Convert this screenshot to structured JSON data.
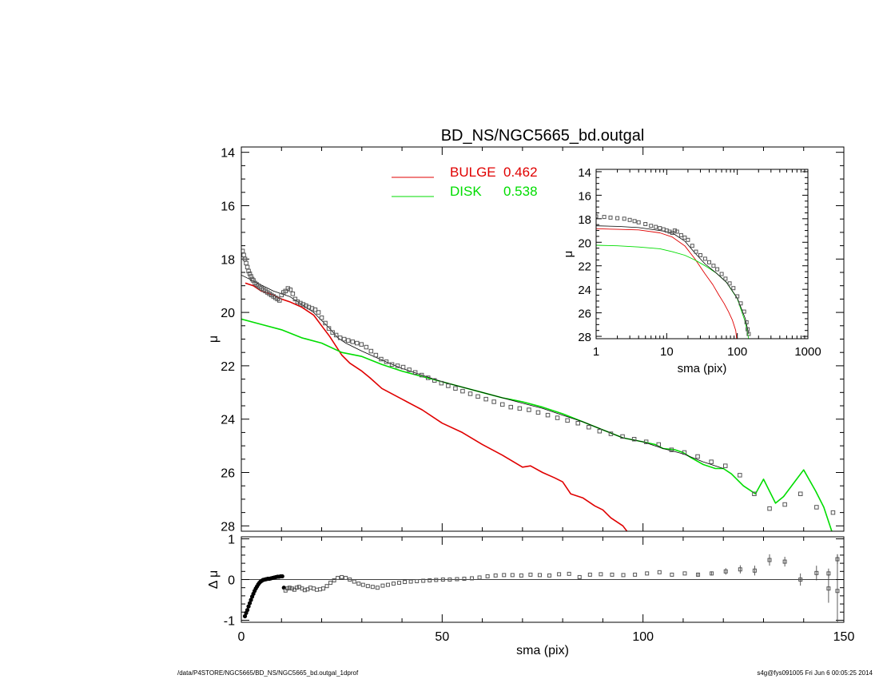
{
  "chart_data": [
    {
      "id": "main",
      "type": "line",
      "title": "BD_NS/NGC5665_bd.outgal",
      "xlabel": "",
      "ylabel": "μ",
      "xlim": [
        0,
        150
      ],
      "ylim": [
        28.2,
        13.8
      ],
      "y_inverted": true,
      "yticks": [
        14,
        16,
        18,
        20,
        22,
        24,
        26,
        28
      ],
      "legend": [
        {
          "label": "BULGE",
          "value": "0.462",
          "color": "#e00000"
        },
        {
          "label": "DISK",
          "value": "0.538",
          "color": "#00dd00"
        }
      ],
      "legend_placement": "top-center",
      "series": [
        {
          "name": "BULGE",
          "color": "#e00000",
          "x": [
            1,
            3,
            5,
            8,
            10,
            12,
            15,
            18,
            20,
            22,
            25,
            27,
            30,
            32,
            35,
            40,
            45,
            50,
            55,
            60,
            65,
            70,
            72,
            75,
            78,
            80,
            82,
            85,
            88,
            90,
            92,
            95,
            96
          ],
          "y": [
            18.9,
            19.0,
            19.2,
            19.35,
            19.5,
            19.6,
            19.8,
            20.1,
            20.5,
            20.9,
            21.6,
            21.9,
            22.2,
            22.45,
            22.85,
            23.25,
            23.65,
            24.15,
            24.5,
            24.95,
            25.35,
            25.8,
            25.75,
            26.0,
            26.2,
            26.35,
            26.8,
            26.95,
            27.25,
            27.4,
            27.7,
            28.0,
            28.2
          ]
        },
        {
          "name": "DISK",
          "color": "#00dd00",
          "x": [
            0,
            5,
            10,
            15,
            20,
            25,
            30,
            35,
            40,
            45,
            50,
            55,
            60,
            65,
            70,
            75,
            80,
            85,
            90,
            95,
            100,
            103,
            105,
            108,
            110,
            112,
            115,
            118,
            120,
            122,
            125,
            128,
            130,
            133,
            135,
            138,
            140,
            143,
            145,
            147
          ],
          "y": [
            20.25,
            20.45,
            20.65,
            20.95,
            21.15,
            21.5,
            21.65,
            21.95,
            22.2,
            22.4,
            22.6,
            22.8,
            23.0,
            23.2,
            23.35,
            23.55,
            23.8,
            24.1,
            24.4,
            24.7,
            24.85,
            24.95,
            25.1,
            25.15,
            25.25,
            25.45,
            25.7,
            25.85,
            25.85,
            26.05,
            26.5,
            26.8,
            26.25,
            27.15,
            26.9,
            26.3,
            25.9,
            26.7,
            27.3,
            28.2
          ]
        },
        {
          "name": "",
          "color": "#000000",
          "kind": "thin-model",
          "x": [
            0,
            2,
            4,
            6,
            8,
            10,
            12,
            14,
            16,
            18,
            20,
            22,
            24,
            26,
            28,
            30,
            33,
            36,
            40,
            45,
            50,
            55,
            60,
            65,
            70,
            75,
            80,
            85,
            90,
            95,
            100,
            105,
            110,
            115,
            120
          ],
          "y": [
            18.6,
            18.75,
            18.9,
            19.05,
            19.2,
            19.3,
            19.4,
            19.6,
            19.8,
            20.0,
            20.3,
            20.6,
            20.95,
            21.15,
            21.3,
            21.45,
            21.65,
            21.85,
            22.1,
            22.35,
            22.6,
            22.8,
            23.0,
            23.2,
            23.4,
            23.6,
            23.85,
            24.1,
            24.4,
            24.7,
            24.85,
            25.1,
            25.3,
            25.6,
            25.85
          ]
        },
        {
          "name": "",
          "color": "#000000",
          "kind": "data-points",
          "x": [
            0.3,
            0.6,
            0.9,
            1.2,
            1.5,
            1.8,
            2.1,
            2.4,
            2.7,
            3.0,
            3.4,
            3.8,
            4.2,
            4.6,
            5.0,
            5.5,
            6.0,
            6.5,
            7.0,
            7.5,
            8.0,
            8.5,
            9.0,
            9.5,
            10.0,
            10.5,
            11.0,
            11.6,
            12.2,
            12.8,
            13.4,
            14.0,
            14.7,
            15.4,
            16.1,
            16.8,
            17.6,
            18.4,
            19.2,
            20.0,
            20.9,
            21.8,
            22.7,
            23.6,
            24.6,
            25.6,
            26.6,
            27.7,
            28.8,
            29.9,
            31.1,
            32.3,
            33.5,
            34.8,
            36.1,
            37.5,
            38.9,
            40.3,
            41.8,
            43.3,
            44.9,
            46.5,
            48.1,
            49.8,
            51.5,
            53.3,
            55.1,
            57.0,
            58.9,
            60.9,
            62.9,
            65.0,
            67.1,
            69.3,
            71.6,
            73.9,
            76.3,
            78.7,
            81.2,
            83.8,
            86.5,
            89.2,
            92.0,
            94.9,
            97.8,
            100.8,
            103.9,
            107.1,
            110.3,
            113.6,
            117.0,
            120.5,
            124.1,
            127.7,
            131.5,
            135.3,
            139.2,
            143.2,
            147.3
          ],
          "y": [
            17.7,
            17.85,
            18.0,
            18.15,
            18.3,
            18.45,
            18.55,
            18.65,
            18.75,
            18.8,
            18.9,
            18.95,
            19.0,
            19.05,
            19.1,
            19.15,
            19.2,
            19.25,
            19.3,
            19.35,
            19.4,
            19.45,
            19.5,
            19.55,
            19.35,
            19.25,
            19.2,
            19.1,
            19.15,
            19.3,
            19.5,
            19.6,
            19.65,
            19.7,
            19.75,
            19.8,
            19.85,
            19.9,
            20.0,
            20.2,
            20.4,
            20.6,
            20.75,
            20.85,
            20.95,
            21.0,
            21.05,
            21.1,
            21.15,
            21.2,
            21.3,
            21.45,
            21.6,
            21.75,
            21.85,
            21.95,
            22.0,
            22.05,
            22.15,
            22.25,
            22.35,
            22.45,
            22.55,
            22.65,
            22.75,
            22.85,
            22.95,
            23.05,
            23.15,
            23.25,
            23.35,
            23.45,
            23.55,
            23.6,
            23.65,
            23.75,
            23.85,
            23.95,
            24.05,
            24.15,
            24.3,
            24.45,
            24.55,
            24.65,
            24.75,
            24.85,
            24.95,
            25.15,
            25.25,
            25.4,
            25.6,
            25.75,
            26.1,
            26.8,
            27.35,
            27.2,
            26.8,
            27.3,
            27.5
          ]
        }
      ]
    },
    {
      "id": "inset",
      "type": "line",
      "title": "",
      "xlabel": "sma (pix)",
      "ylabel": "μ",
      "xscale": "log",
      "xlim": [
        1,
        1000
      ],
      "ylim": [
        28.2,
        13.8
      ],
      "y_inverted": true,
      "xticks": [
        1,
        10,
        100,
        1000
      ],
      "xtick_labels": [
        "1",
        "10",
        "100",
        "1000"
      ],
      "yticks": [
        14,
        16,
        18,
        20,
        22,
        24,
        26,
        28
      ],
      "series": [
        {
          "name": "BULGE",
          "color": "#e00000",
          "x": [
            1,
            2,
            4,
            8,
            12,
            18,
            25,
            35,
            45,
            55,
            65,
            75,
            85,
            95,
            98
          ],
          "y": [
            18.85,
            18.9,
            18.95,
            19.2,
            19.55,
            20.3,
            21.4,
            22.7,
            23.6,
            24.5,
            25.2,
            25.9,
            26.6,
            27.5,
            28.2
          ]
        },
        {
          "name": "DISK",
          "color": "#00dd00",
          "x": [
            1,
            2,
            4,
            8,
            12,
            18,
            25,
            35,
            50,
            70,
            100,
            130,
            145
          ],
          "y": [
            20.25,
            20.3,
            20.4,
            20.55,
            20.8,
            21.1,
            21.5,
            22.0,
            22.6,
            23.4,
            24.8,
            26.8,
            28.2
          ]
        },
        {
          "name": "",
          "color": "#000000",
          "kind": "thin-model",
          "x": [
            1,
            2,
            4,
            8,
            12,
            18,
            25,
            35,
            50,
            70,
            100,
            130,
            145
          ],
          "y": [
            18.6,
            18.65,
            18.75,
            19.0,
            19.2,
            19.9,
            20.9,
            21.85,
            22.6,
            23.4,
            24.75,
            26.5,
            27.8
          ]
        },
        {
          "name": "",
          "color": "#000000",
          "kind": "data-points",
          "x": [
            1,
            1.3,
            1.6,
            2,
            2.5,
            3,
            3.5,
            4,
            5,
            6,
            7,
            8,
            9,
            10,
            11,
            12,
            13,
            14,
            16,
            18,
            20,
            23,
            26,
            30,
            35,
            40,
            46,
            52,
            60,
            68,
            78,
            88,
            100,
            112,
            125,
            135,
            140,
            145
          ],
          "y": [
            17.8,
            17.85,
            17.9,
            17.95,
            18.0,
            18.1,
            18.2,
            18.3,
            18.45,
            18.6,
            18.7,
            18.8,
            18.9,
            19.0,
            19.1,
            19.2,
            19.0,
            19.1,
            19.4,
            19.6,
            19.8,
            20.3,
            20.8,
            21.1,
            21.4,
            21.7,
            22.0,
            22.3,
            22.7,
            23.1,
            23.5,
            23.9,
            24.6,
            25.2,
            25.9,
            26.8,
            27.4,
            27.8
          ]
        }
      ]
    },
    {
      "id": "residual",
      "type": "scatter",
      "title": "",
      "xlabel": "sma (pix)",
      "ylabel": "Δ μ",
      "xlim": [
        0,
        150
      ],
      "ylim": [
        -1.05,
        1.05
      ],
      "xticks": [
        0,
        50,
        100,
        150
      ],
      "yticks": [
        -1,
        0,
        1
      ],
      "series": [
        {
          "name": "",
          "kind": "residual-points",
          "x": [
            0.9,
            1.2,
            1.5,
            1.8,
            2.1,
            2.4,
            2.7,
            3.0,
            3.3,
            3.6,
            3.9,
            4.2,
            4.5,
            4.8,
            5.1,
            5.4,
            5.8,
            6.2,
            6.6,
            7.0,
            7.4,
            7.8,
            8.2,
            8.6,
            9.0,
            9.4,
            9.8,
            10.2,
            10.6,
            11.0,
            11.5,
            12.0,
            12.6,
            13.2,
            13.8,
            14.4,
            15.1,
            15.8,
            16.5,
            17.2,
            18.0,
            18.8,
            19.6,
            20.4,
            21.3,
            22.2,
            23.1,
            24.0,
            25.0,
            26.0,
            27.0,
            28.1,
            29.2,
            30.3,
            31.5,
            32.7,
            33.9,
            35.2,
            36.5,
            37.9,
            39.3,
            40.7,
            42.2,
            43.7,
            45.3,
            46.9,
            48.5,
            50.2,
            51.9,
            53.7,
            55.5,
            57.4,
            59.3,
            61.3,
            63.3,
            65.4,
            67.5,
            69.7,
            72.0,
            74.3,
            76.7,
            79.1,
            81.6,
            84.2,
            86.8,
            89.5,
            92.3,
            95.1,
            98.0,
            101.0,
            104.1,
            107.2,
            110.4,
            113.7,
            117.1,
            120.6,
            124.2,
            127.8,
            131.5,
            135.3,
            139.2,
            143.2,
            146.2,
            148.4
          ],
          "y": [
            -0.9,
            -0.82,
            -0.75,
            -0.66,
            -0.58,
            -0.5,
            -0.42,
            -0.35,
            -0.28,
            -0.22,
            -0.17,
            -0.12,
            -0.08,
            -0.05,
            -0.03,
            -0.01,
            0.0,
            0.01,
            0.02,
            0.02,
            0.03,
            0.04,
            0.05,
            0.06,
            0.07,
            0.07,
            0.08,
            0.08,
            -0.2,
            -0.27,
            -0.22,
            -0.2,
            -0.22,
            -0.25,
            -0.2,
            -0.18,
            -0.22,
            -0.26,
            -0.24,
            -0.2,
            -0.22,
            -0.25,
            -0.24,
            -0.22,
            -0.16,
            -0.08,
            -0.02,
            0.04,
            0.06,
            0.04,
            0.0,
            -0.05,
            -0.1,
            -0.13,
            -0.16,
            -0.18,
            -0.2,
            -0.15,
            -0.13,
            -0.1,
            -0.08,
            -0.06,
            -0.05,
            -0.04,
            -0.03,
            -0.02,
            -0.01,
            0.0,
            0.0,
            0.01,
            0.02,
            0.03,
            0.05,
            0.08,
            0.1,
            0.11,
            0.11,
            0.1,
            0.12,
            0.11,
            0.1,
            0.13,
            0.14,
            0.06,
            0.12,
            0.13,
            0.12,
            0.11,
            0.12,
            0.15,
            0.18,
            0.12,
            0.15,
            0.12,
            0.15,
            0.2,
            0.25,
            0.22,
            0.48,
            0.44,
            0.0,
            0.16,
            0.15,
            0.5
          ],
          "err": [
            0,
            0,
            0,
            0,
            0,
            0,
            0,
            0,
            0,
            0,
            0,
            0,
            0,
            0,
            0,
            0,
            0,
            0,
            0,
            0,
            0,
            0,
            0,
            0,
            0,
            0,
            0,
            0,
            0,
            0,
            0,
            0,
            0,
            0,
            0,
            0,
            0,
            0,
            0,
            0,
            0,
            0,
            0,
            0,
            0,
            0,
            0,
            0,
            0,
            0,
            0,
            0,
            0,
            0,
            0,
            0,
            0,
            0,
            0,
            0,
            0,
            0,
            0,
            0,
            0,
            0,
            0,
            0,
            0,
            0,
            0,
            0,
            0,
            0,
            0,
            0,
            0,
            0,
            0,
            0,
            0,
            0,
            0,
            0,
            0,
            0,
            0,
            0,
            0,
            0,
            0,
            0,
            0,
            0.05,
            0.05,
            0.08,
            0.1,
            0.12,
            0.14,
            0.12,
            0.15,
            0.18,
            0.12,
            0.12
          ],
          "tail_points": [
            {
              "x": 146.2,
              "y": -0.22,
              "err": 0.35
            },
            {
              "x": 148.4,
              "y": -0.28,
              "err": 0.9
            }
          ]
        }
      ]
    }
  ],
  "footer": {
    "left": "/data/P4STORE/NGC5665/BD_NS/NGC5665_bd.outgal_1dprof",
    "right": "s4g@fys091005  Fri Jun  6 00:05:25 2014"
  }
}
